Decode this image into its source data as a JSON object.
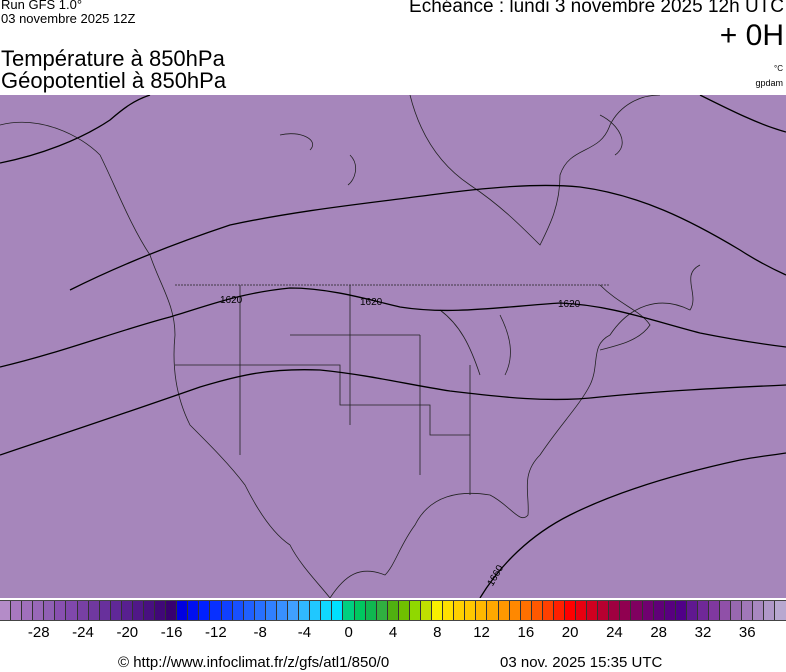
{
  "header": {
    "run": "Run GFS 1.0°",
    "run_date": "03 novembre 2025 12Z",
    "echeance": "Echéance : lundi 3 novembre 2025 12h UTC",
    "offset": "+ 0H",
    "title1": "Température à 850hPa",
    "title2": "Géopotentiel à 850hPa",
    "unit1": "°C",
    "unit2": "gpdam"
  },
  "map": {
    "background": "#a686bb",
    "contour_labels": [
      "1620",
      "1620",
      "1620",
      "1660"
    ]
  },
  "colorbar": {
    "min": -31,
    "max": 40,
    "ticks": [
      "-28",
      "-24",
      "-20",
      "-16",
      "-12",
      "-8",
      "-4",
      "0",
      "4",
      "8",
      "12",
      "16",
      "20",
      "24",
      "28",
      "32",
      "36"
    ],
    "colors": [
      "#b48cc8",
      "#a878c0",
      "#a070bc",
      "#9868b8",
      "#9060b4",
      "#8850b0",
      "#8048ac",
      "#7840a4",
      "#7038a0",
      "#68309c",
      "#602898",
      "#582090",
      "#501888",
      "#481080",
      "#400878",
      "#380070",
      "#0000e0",
      "#0010f0",
      "#0020ff",
      "#0830ff",
      "#1040ff",
      "#1850ff",
      "#2060ff",
      "#2870ff",
      "#3080ff",
      "#3890ff",
      "#40a0ff",
      "#30b8ff",
      "#20c8ff",
      "#10d8ff",
      "#00e0ff",
      "#00d080",
      "#00c860",
      "#10b850",
      "#30b040",
      "#50b010",
      "#70c000",
      "#90d800",
      "#c0e000",
      "#f8f000",
      "#ffe000",
      "#ffd000",
      "#ffc800",
      "#ffb800",
      "#ffa800",
      "#ff9800",
      "#ff8800",
      "#ff7000",
      "#ff5800",
      "#ff4000",
      "#ff2000",
      "#ff0000",
      "#e80010",
      "#d00020",
      "#b80030",
      "#a00040",
      "#900050",
      "#800060",
      "#700070",
      "#600078",
      "#580080",
      "#500088",
      "#601890",
      "#702898",
      "#8038a0",
      "#9050a8",
      "#9868b0",
      "#a078b8",
      "#a888c0",
      "#b098c8",
      "#b8a8d0"
    ]
  },
  "footer": {
    "source": "© http://www.infoclimat.fr/z/gfs/atl1/850/0",
    "generated": "03 nov. 2025 15:35 UTC"
  }
}
